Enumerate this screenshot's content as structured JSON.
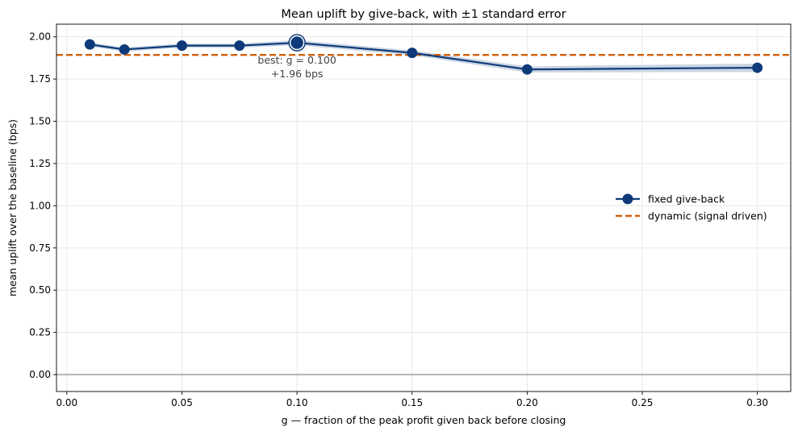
{
  "chart_data": {
    "type": "line",
    "title": "Mean uplift by give-back, with ±1 standard error",
    "xlabel": "g — fraction of the peak profit given back before closing",
    "ylabel": "mean uplift over the baseline (bps)",
    "xlim": [
      -0.0045,
      0.3145
    ],
    "ylim": [
      -0.1,
      2.075
    ],
    "grid": true,
    "legend_placement": "center-right",
    "x_ticks": [
      "0.00",
      "0.05",
      "0.10",
      "0.15",
      "0.20",
      "0.25",
      "0.30"
    ],
    "x_tick_values": [
      0,
      0.05,
      0.1,
      0.15,
      0.2,
      0.25,
      0.3
    ],
    "y_ticks": [
      "0.00",
      "0.25",
      "0.50",
      "0.75",
      "1.00",
      "1.25",
      "1.50",
      "1.75",
      "2.00"
    ],
    "y_tick_values": [
      0,
      0.25,
      0.5,
      0.75,
      1.0,
      1.25,
      1.5,
      1.75,
      2.0
    ],
    "reference_line_y": 0,
    "series": [
      {
        "name": "fixed give-back",
        "color": "#0e3a7a",
        "band_color": "#b9c8da",
        "x": [
          0.01,
          0.025,
          0.05,
          0.075,
          0.1,
          0.15,
          0.2,
          0.3
        ],
        "y": [
          1.955,
          1.925,
          1.948,
          1.948,
          1.965,
          1.905,
          1.807,
          1.817
        ],
        "se": [
          0.012,
          0.012,
          0.012,
          0.012,
          0.015,
          0.015,
          0.018,
          0.025
        ]
      },
      {
        "name": "dynamic (signal driven)",
        "color": "#d4600a",
        "style": "dashed",
        "y_constant": 1.893
      }
    ],
    "annotations": [
      {
        "line1": "best: g = 0.100",
        "line2": "+1.96 bps",
        "x": 0.1,
        "y": 1.965
      }
    ]
  }
}
